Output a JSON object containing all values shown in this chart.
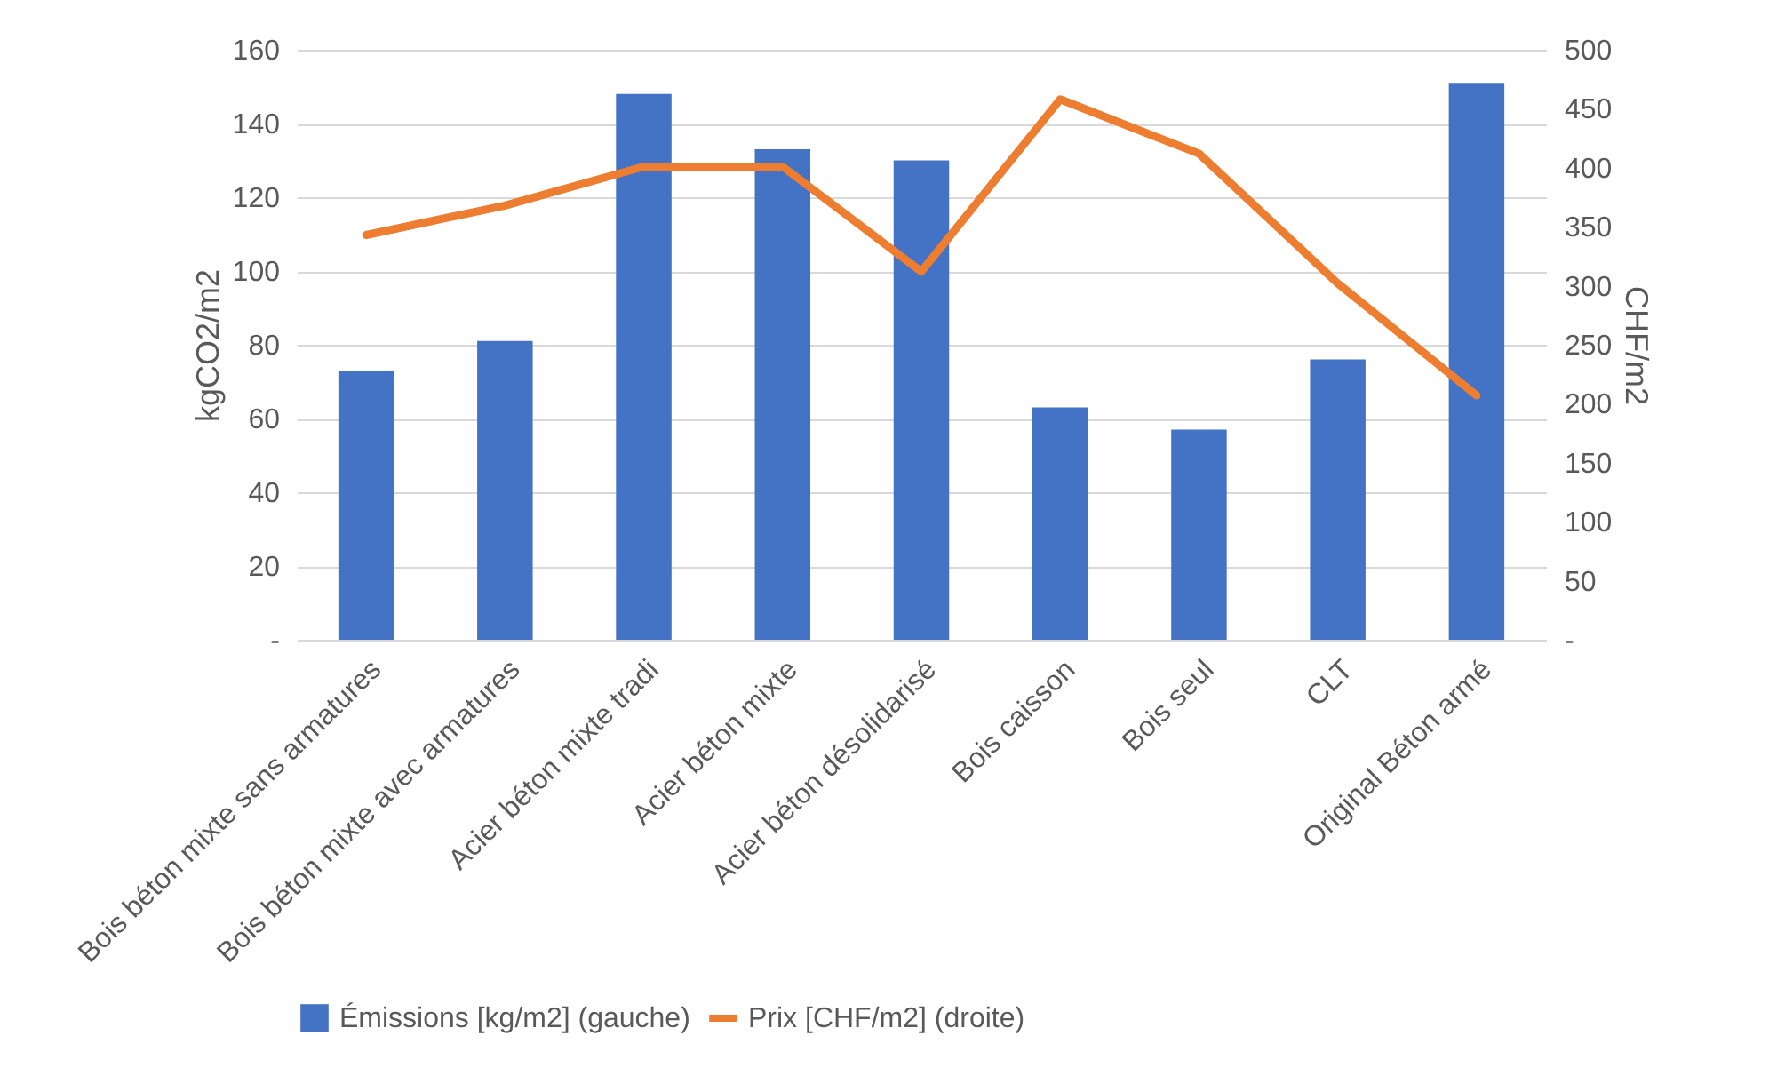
{
  "chart_data": {
    "type": "bar",
    "categories": [
      "Bois béton mixte sans armatures",
      "Bois béton mixte avec armatures",
      "Acier béton mixte tradi",
      "Acier béton mixte",
      "Acier béton désolidarisé",
      "Bois caisson",
      "Bois seul",
      "CLT",
      "Original Béton armé"
    ],
    "series": [
      {
        "name": "Émissions [kg/m2] (gauche)",
        "color": "#4472c4",
        "values": [
          73,
          81,
          148,
          133,
          130,
          63,
          57,
          76,
          151
        ]
      },
      {
        "name": "Prix [CHF/m2] (droite)",
        "type": "line",
        "axis": "y2",
        "color": "#ed7d31",
        "values": [
          343,
          368,
          401,
          401,
          312,
          458,
          412,
          302,
          207
        ]
      }
    ],
    "ylabel": "kgCO2/m2",
    "y2label": "CHF/m2",
    "ylim": [
      0,
      160
    ],
    "yticks": [
      {
        "value": 0,
        "label": "-"
      },
      20,
      40,
      60,
      80,
      100,
      120,
      140,
      160
    ],
    "y2lim": [
      0,
      500
    ],
    "y2ticks": [
      {
        "value": 0,
        "label": "-"
      },
      50,
      100,
      150,
      200,
      250,
      300,
      350,
      400,
      450,
      500
    ],
    "grid": "y",
    "legend": "bottom"
  }
}
